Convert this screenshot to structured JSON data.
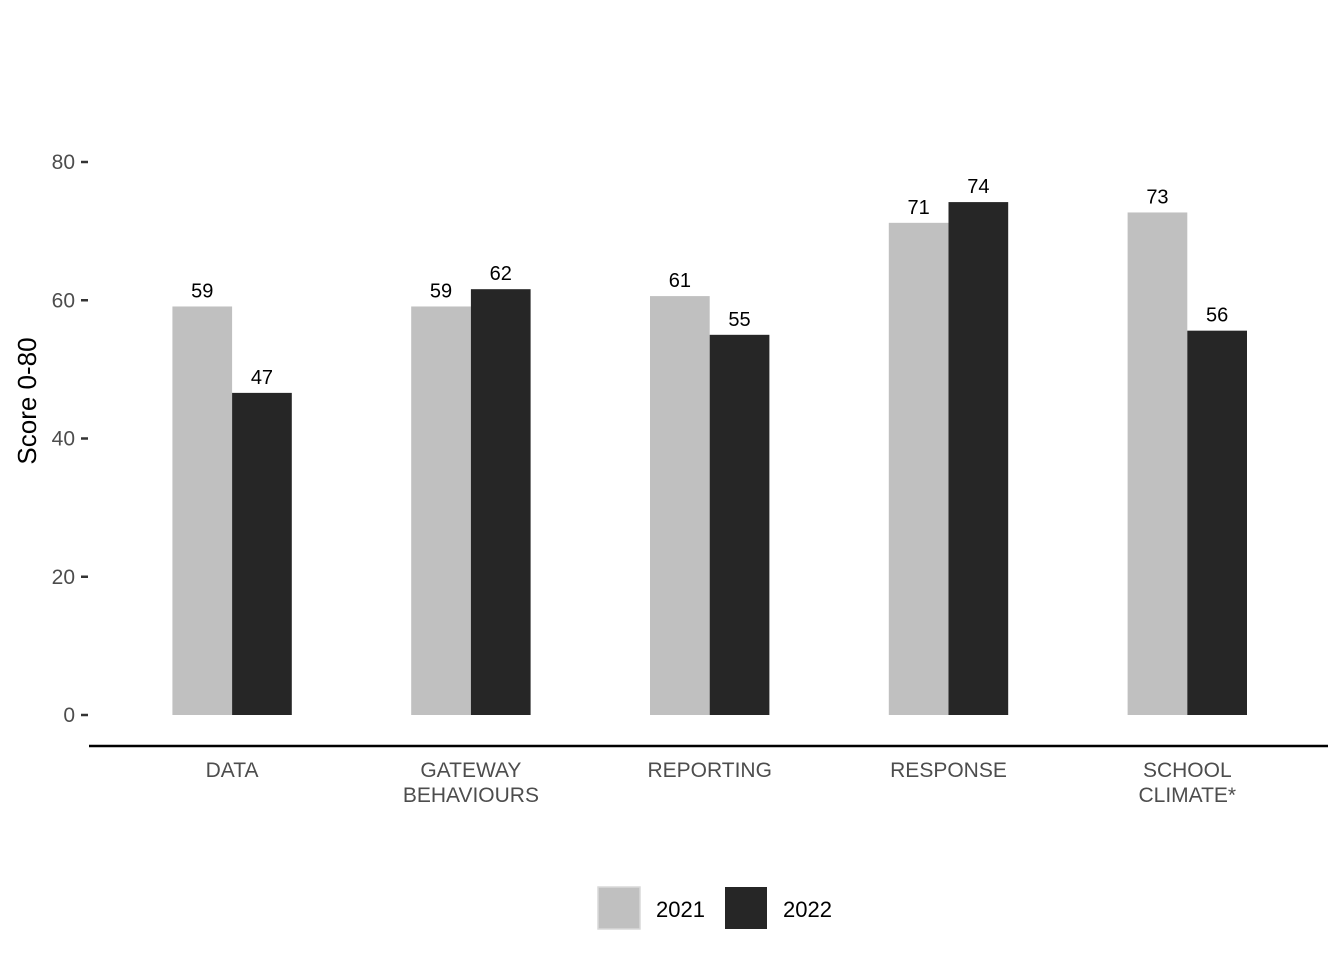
{
  "chart_data": {
    "type": "bar",
    "categories": [
      [
        "DATA"
      ],
      [
        "GATEWAY",
        "BEHAVIOURS"
      ],
      [
        "REPORTING"
      ],
      [
        "RESPONSE"
      ],
      [
        "SCHOOL",
        "CLIMATE*"
      ]
    ],
    "series": [
      {
        "name": "2021",
        "color": "#c0c0c0",
        "values": [
          59.1,
          59.1,
          60.6,
          71.2,
          72.7
        ]
      },
      {
        "name": "2022",
        "color": "#262626",
        "values": [
          46.6,
          61.6,
          55.0,
          74.2,
          55.6
        ]
      }
    ],
    "data_labels": [
      [
        "59",
        "59",
        "61",
        "71",
        "73"
      ],
      [
        "47",
        "62",
        "55",
        "74",
        "56"
      ]
    ],
    "ylabel": "Score 0-80",
    "xlabel": "",
    "title": "",
    "ylim": [
      0,
      80
    ],
    "yticks": [
      0,
      20,
      40,
      60,
      80
    ],
    "grid": false,
    "legend_position": "bottom"
  }
}
